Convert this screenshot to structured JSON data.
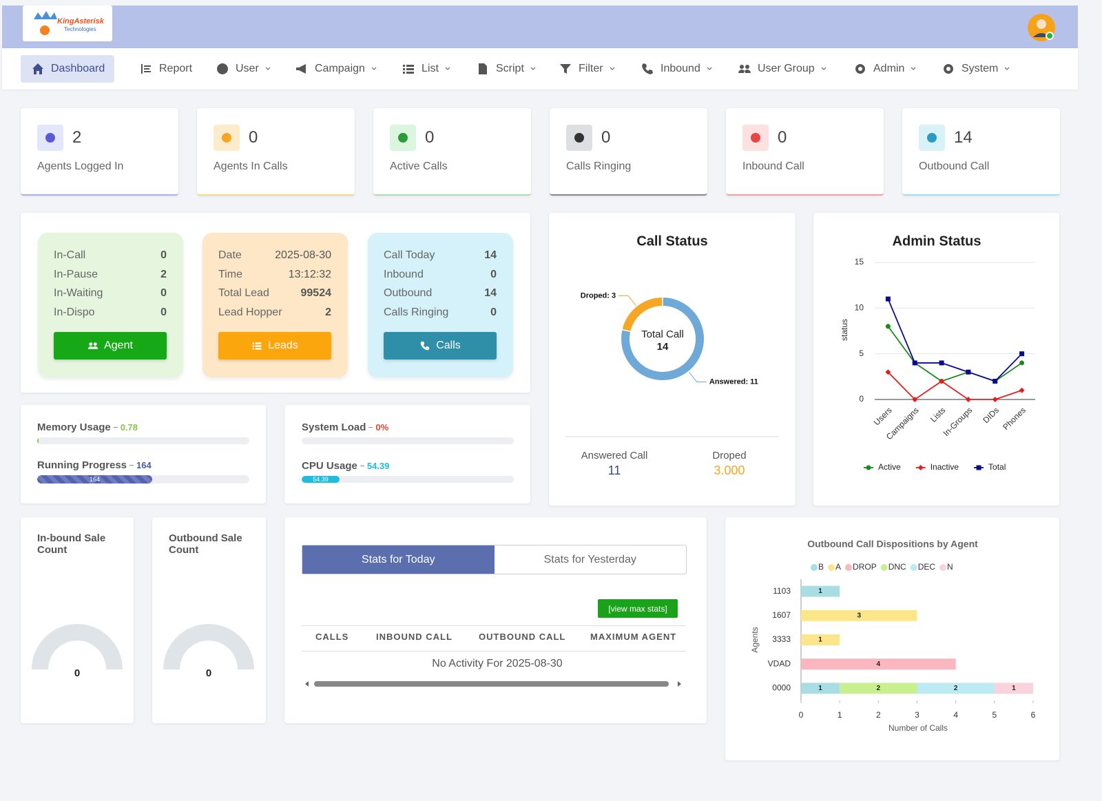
{
  "header": {
    "logo_title": "KingAsterisk",
    "logo_subtitle": "Technologies"
  },
  "nav": [
    "Dashboard",
    "Report",
    "User",
    "Campaign",
    "List",
    "Script",
    "Filter",
    "Inbound",
    "User Group",
    "Admin",
    "System"
  ],
  "stat_cards": [
    {
      "value": 2,
      "label": "Agents Logged In"
    },
    {
      "value": 0,
      "label": "Agents In Calls"
    },
    {
      "value": 0,
      "label": "Active Calls"
    },
    {
      "value": 0,
      "label": "Calls Ringing"
    },
    {
      "value": 0,
      "label": "Inbound Call"
    },
    {
      "value": 14,
      "label": "Outbound Call"
    }
  ],
  "summary_panels": [
    {
      "rows": [
        [
          "In-Call",
          0
        ],
        [
          "In-Pause",
          2
        ],
        [
          "In-Waiting",
          0
        ],
        [
          "In-Dispo",
          0
        ]
      ],
      "button": "Agent"
    },
    {
      "rows": [
        [
          "Date",
          "2025-08-30"
        ],
        [
          "Time",
          "13:12:32"
        ],
        [
          "Total Lead",
          99524
        ],
        [
          "Lead Hopper",
          2
        ]
      ],
      "button": "Leads"
    },
    {
      "rows": [
        [
          "Call Today",
          14
        ],
        [
          "Inbound",
          0
        ],
        [
          "Outbound",
          14
        ],
        [
          "Calls Ringing",
          0
        ]
      ],
      "button": "Calls"
    }
  ],
  "usage": [
    {
      "label": "Memory Usage",
      "value": 0.78
    },
    {
      "label": "Running Progress",
      "value": 164
    },
    {
      "label": "System Load",
      "value": "0%"
    },
    {
      "label": "CPU Usage",
      "value": 54.39
    }
  ],
  "sales": [
    {
      "title": "In-bound Sale Count",
      "value": 0
    },
    {
      "title": "Outbound Sale Count",
      "value": 0
    }
  ],
  "stats": {
    "tabs": [
      "Stats for Today",
      "Stats for Yesterday"
    ],
    "button": "[view max stats]",
    "columns": [
      "CALLS",
      "INBOUND CALL",
      "OUTBOUND CALL",
      "MAXIMUM AGENT"
    ],
    "message": "No Activity For 2025-08-30"
  },
  "chart_data": [
    {
      "type": "pie",
      "title": "Call Status",
      "categories": [
        "Droped",
        "Answered"
      ],
      "values": [
        3,
        11
      ],
      "value_labels": [
        "Droped: 3",
        "Answered: 11"
      ],
      "colors": [
        "#f5a623",
        "#6ea9d8"
      ],
      "center_label": "Total Call",
      "center_value": 14,
      "footer": [
        {
          "label": "Answered Call",
          "value": 11
        },
        {
          "label": "Droped",
          "value": "3.000"
        }
      ]
    },
    {
      "type": "line",
      "title": "Admin Status",
      "categories": [
        "Users",
        "Campaigns",
        "Lists",
        "In-Groups",
        "DIDs",
        "Phones"
      ],
      "y_label": "status",
      "series": [
        {
          "name": "Active",
          "color": "#1a8a1a",
          "marker": "circle",
          "values": [
            8,
            4,
            2,
            3,
            2,
            4
          ]
        },
        {
          "name": "Inactive",
          "color": "#e81c1c",
          "marker": "diamond",
          "values": [
            3,
            0,
            2,
            0,
            0,
            1
          ]
        },
        {
          "name": "Total",
          "color": "#0a0a8c",
          "marker": "square",
          "values": [
            11,
            4,
            4,
            3,
            2,
            5
          ]
        }
      ],
      "ylim": [
        0,
        15
      ],
      "yticks": [
        0,
        5,
        10,
        15
      ],
      "grid": true,
      "legend": "bottom"
    },
    {
      "type": "bar",
      "orientation": "horizontal",
      "stacked": true,
      "title": "Outbound Call Dispositions by Agent",
      "categories": [
        "1103",
        "1607",
        "3333",
        "VDAD",
        "0000"
      ],
      "x_label": "Number of Calls",
      "y_label": "Agents",
      "series": [
        {
          "name": "B",
          "color": "#a9dde4",
          "values": [
            1,
            0,
            0,
            0,
            1
          ]
        },
        {
          "name": "A",
          "color": "#fde68a",
          "values": [
            0,
            3,
            1,
            0,
            0
          ]
        },
        {
          "name": "DROP",
          "color": "#f9b7bf",
          "values": [
            0,
            0,
            0,
            4,
            0
          ]
        },
        {
          "name": "DNC",
          "color": "#c8f08f",
          "values": [
            0,
            0,
            0,
            0,
            2
          ]
        },
        {
          "name": "DEC",
          "color": "#bdebf3",
          "values": [
            0,
            0,
            0,
            0,
            2
          ]
        },
        {
          "name": "N",
          "color": "#fbd3dc",
          "values": [
            0,
            0,
            0,
            0,
            1
          ]
        }
      ],
      "xlim": [
        0,
        6
      ],
      "xticks": [
        0,
        1,
        2,
        3,
        4,
        5,
        6
      ],
      "legend": "top"
    }
  ]
}
